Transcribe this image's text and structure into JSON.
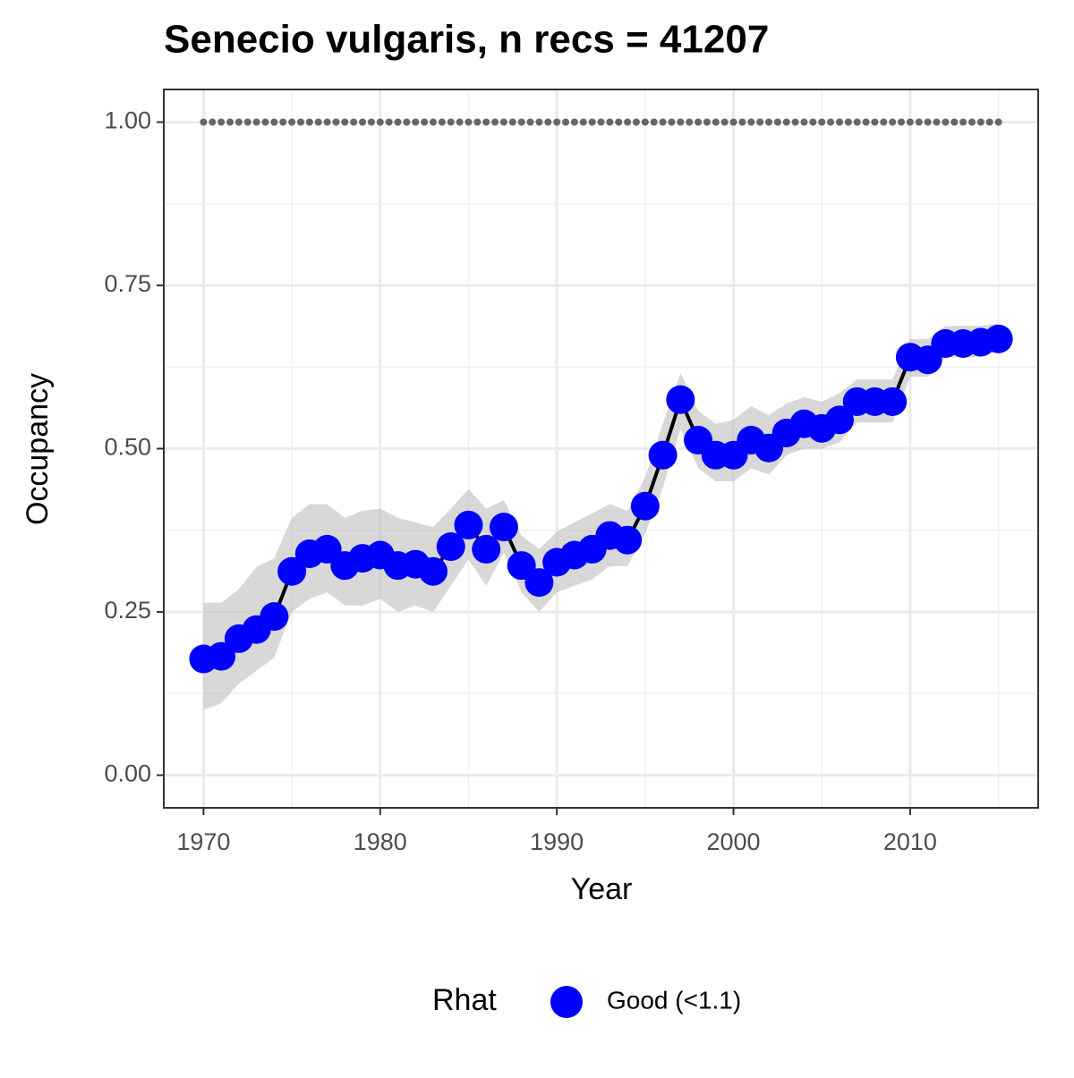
{
  "chart_data": {
    "type": "line",
    "title": "Senecio vulgaris, n recs = 41207",
    "x_label": "Year",
    "y_label": "Occupancy",
    "x": [
      1970,
      1971,
      1972,
      1973,
      1974,
      1975,
      1976,
      1977,
      1978,
      1979,
      1980,
      1981,
      1982,
      1983,
      1984,
      1985,
      1986,
      1987,
      1988,
      1989,
      1990,
      1991,
      1992,
      1993,
      1994,
      1995,
      1996,
      1997,
      1998,
      1999,
      2000,
      2001,
      2002,
      2003,
      2004,
      2005,
      2006,
      2007,
      2008,
      2009,
      2010,
      2011,
      2012,
      2013,
      2014,
      2015
    ],
    "series": [
      {
        "name": "Good (<1.1)",
        "color": "#0000ff",
        "line_color": "#000000",
        "band_color": "#bebebe",
        "values": [
          0.178,
          0.182,
          0.209,
          0.223,
          0.243,
          0.312,
          0.339,
          0.346,
          0.321,
          0.332,
          0.337,
          0.321,
          0.323,
          0.312,
          0.35,
          0.383,
          0.346,
          0.38,
          0.321,
          0.295,
          0.326,
          0.337,
          0.346,
          0.367,
          0.36,
          0.412,
          0.49,
          0.575,
          0.513,
          0.49,
          0.49,
          0.513,
          0.501,
          0.524,
          0.538,
          0.531,
          0.544,
          0.572,
          0.572,
          0.572,
          0.64,
          0.636,
          0.661,
          0.661,
          0.663,
          0.668
        ],
        "upper": [
          0.264,
          0.264,
          0.285,
          0.319,
          0.332,
          0.394,
          0.415,
          0.415,
          0.394,
          0.405,
          0.408,
          0.394,
          0.387,
          0.38,
          0.408,
          0.438,
          0.408,
          0.421,
          0.367,
          0.346,
          0.373,
          0.387,
          0.401,
          0.415,
          0.405,
          0.456,
          0.538,
          0.616,
          0.558,
          0.538,
          0.544,
          0.565,
          0.551,
          0.569,
          0.579,
          0.572,
          0.585,
          0.606,
          0.606,
          0.606,
          0.668,
          0.668,
          0.688,
          0.688,
          0.688,
          0.692
        ],
        "lower": [
          0.1,
          0.11,
          0.14,
          0.16,
          0.18,
          0.25,
          0.27,
          0.28,
          0.26,
          0.26,
          0.27,
          0.25,
          0.26,
          0.25,
          0.29,
          0.33,
          0.29,
          0.34,
          0.28,
          0.25,
          0.28,
          0.29,
          0.3,
          0.32,
          0.32,
          0.37,
          0.44,
          0.53,
          0.47,
          0.45,
          0.45,
          0.47,
          0.46,
          0.49,
          0.5,
          0.5,
          0.51,
          0.54,
          0.54,
          0.54,
          0.61,
          0.61,
          0.64,
          0.64,
          0.64,
          0.65
        ]
      }
    ],
    "reference_line": 1,
    "reference_color": "#666666",
    "legend_title": "Rhat",
    "legend_position": "bottom",
    "xlim": [
      1967.75,
      2017.25
    ],
    "ylim": [
      -0.05,
      1.05
    ],
    "xticks": [
      1970,
      1980,
      1990,
      2000,
      2010
    ],
    "yticks": [
      {
        "value": 0,
        "label": "0.00"
      },
      {
        "value": 0.25,
        "label": "0.25"
      },
      {
        "value": 0.5,
        "label": "0.50"
      },
      {
        "value": 0.75,
        "label": "0.75"
      },
      {
        "value": 1,
        "label": "1.00"
      }
    ],
    "minor_xticks": [
      1975,
      1985,
      1995,
      2005,
      2015
    ],
    "minor_yticks": [
      0.125,
      0.375,
      0.625,
      0.875
    ],
    "grid": true
  }
}
